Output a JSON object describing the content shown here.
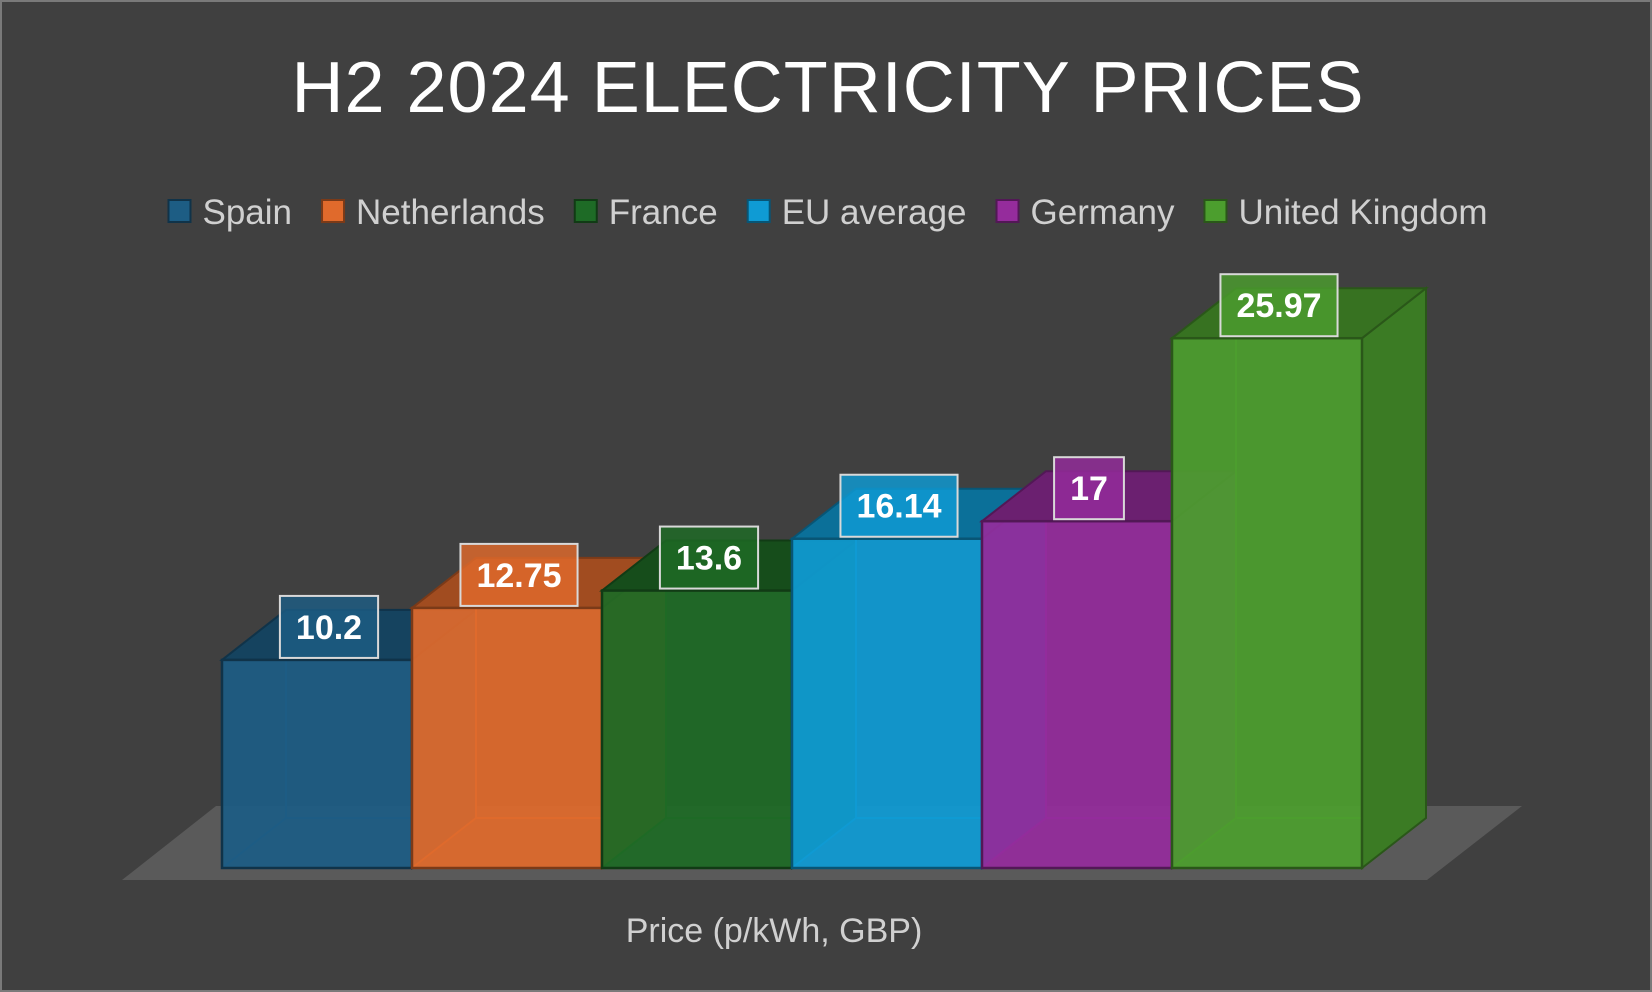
{
  "chart_data": {
    "type": "bar",
    "title": "H2 2024 ELECTRICITY PRICES",
    "xlabel": "Price (p/kWh, GBP)",
    "ylabel": "",
    "categories": [
      "Price (p/kWh, GBP)"
    ],
    "ylim": [
      0,
      30
    ],
    "grid": false,
    "legend_position": "top",
    "three_d": true,
    "data_labels": true,
    "series": [
      {
        "name": "Spain",
        "values": [
          10.2
        ],
        "label": "10.2",
        "color": "#1d5d84"
      },
      {
        "name": "Netherlands",
        "values": [
          12.75
        ],
        "label": "12.75",
        "color": "#e06a2c"
      },
      {
        "name": "France",
        "values": [
          13.6
        ],
        "label": "13.6",
        "color": "#1e6b26"
      },
      {
        "name": "EU average",
        "values": [
          16.14
        ],
        "label": "16.14",
        "color": "#0f9bd4"
      },
      {
        "name": "Germany",
        "values": [
          17
        ],
        "label": "17",
        "color": "#952c9c"
      },
      {
        "name": "United Kingdom",
        "values": [
          25.97
        ],
        "label": "25.97",
        "color": "#4c9e2e"
      }
    ]
  }
}
